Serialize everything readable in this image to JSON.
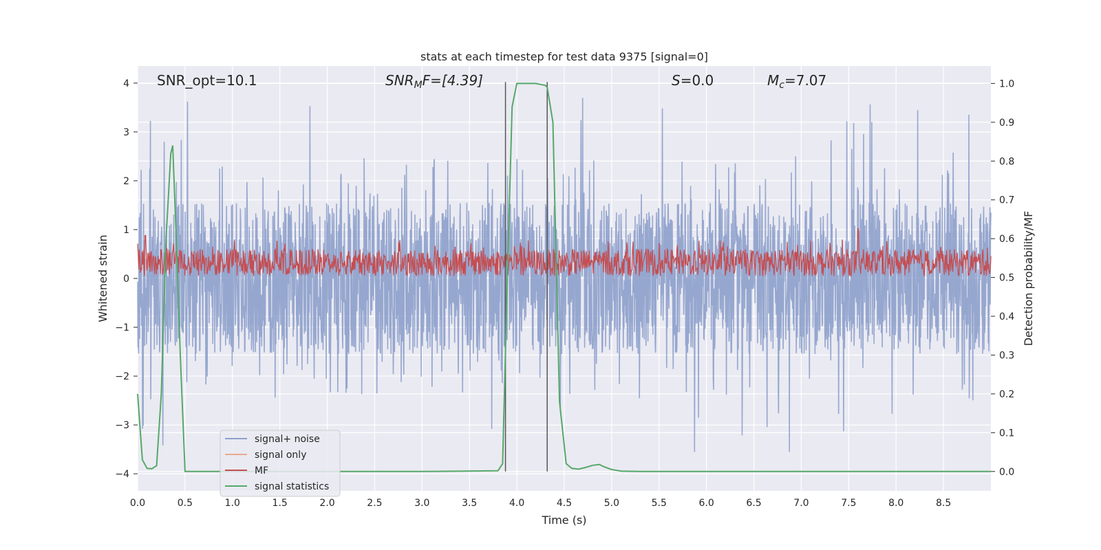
{
  "chart_data": {
    "type": "line",
    "title": "stats at each timestep for test data 9375 [signal=0]",
    "xlabel": "Time (s)",
    "ylabel_left": "Whitened strain",
    "ylabel_right": "Detection probability/MF",
    "xlim": [
      0,
      9.0
    ],
    "ylim_left": [
      -4.35,
      4.35
    ],
    "ylim_right": [
      -0.05,
      1.045
    ],
    "x_ticks": [
      0.0,
      0.5,
      1.0,
      1.5,
      2.0,
      2.5,
      3.0,
      3.5,
      4.0,
      4.5,
      5.0,
      5.5,
      6.0,
      6.5,
      7.0,
      7.5,
      8.0,
      8.5
    ],
    "x_tick_labels": [
      "0.0",
      "0.5",
      "1.0",
      "1.5",
      "2.0",
      "2.5",
      "3.0",
      "3.5",
      "4.0",
      "4.5",
      "5.0",
      "5.5",
      "6.0",
      "6.5",
      "7.0",
      "7.5",
      "8.0",
      "8.5"
    ],
    "y_left_ticks": [
      -4,
      -3,
      -2,
      -1,
      0,
      1,
      2,
      3,
      4
    ],
    "y_left_tick_labels": [
      "−4",
      "−3",
      "−2",
      "−1",
      "0",
      "1",
      "2",
      "3",
      "4"
    ],
    "y_right_ticks": [
      0.0,
      0.1,
      0.2,
      0.3,
      0.4,
      0.5,
      0.6,
      0.7,
      0.8,
      0.9,
      1.0
    ],
    "y_right_tick_labels": [
      "0.0",
      "0.1",
      "0.2",
      "0.3",
      "0.4",
      "0.5",
      "0.6",
      "0.7",
      "0.8",
      "0.9",
      "1.0"
    ],
    "annotations": {
      "snr_opt": "SNR_opt=10.1",
      "snr_mf_sym": "SNR",
      "snr_mf_sub": "M",
      "snr_mf_rest": "F=[4.39]",
      "s_sym": "S",
      "s_rest": "=0.0",
      "mc_sym": "M",
      "mc_sub": "c",
      "mc_rest": "=7.07"
    },
    "legend": {
      "position": "lower-left",
      "entries": [
        "signal+ noise",
        "signal only",
        "MF",
        "signal statistics"
      ]
    },
    "colors": {
      "noise": "#8da0cb",
      "signal": "#e8a98d",
      "mf": "#c44e52",
      "stat": "#55a868",
      "vline": "#555555",
      "bg": "#eaeaf2",
      "grid": "#ffffff"
    },
    "vlines": [
      3.88,
      4.32
    ],
    "series": [
      {
        "name": "signal+ noise",
        "axis": "left",
        "description": "whitened strain, approx. amplitude +/-2.5 with spikes to ~3.9",
        "noise_min_typical": -1.6,
        "noise_max_typical": 1.6,
        "peak_max": 3.95,
        "peak_min": -3.55
      },
      {
        "name": "MF",
        "axis": "left",
        "description": "matched-filter output, approx. 0.05 to 0.7 with peak 1.02",
        "min": 0.02,
        "max": 1.02
      },
      {
        "name": "signal statistics",
        "axis": "right",
        "x": [
          0.0,
          0.05,
          0.1,
          0.15,
          0.2,
          0.25,
          0.3,
          0.35,
          0.37,
          0.4,
          0.45,
          0.5,
          0.55,
          1.0,
          2.0,
          3.0,
          3.8,
          3.85,
          3.9,
          3.95,
          4.0,
          4.1,
          4.2,
          4.3,
          4.32,
          4.38,
          4.45,
          4.52,
          4.58,
          4.65,
          4.72,
          4.8,
          4.87,
          4.92,
          5.0,
          5.1,
          5.3,
          6.0,
          7.0,
          8.0,
          9.0
        ],
        "values": [
          0.2,
          0.03,
          0.008,
          0.007,
          0.015,
          0.2,
          0.6,
          0.82,
          0.84,
          0.65,
          0.3,
          0.0,
          0.0,
          0.0,
          0.0,
          0.0,
          0.002,
          0.02,
          0.5,
          0.94,
          1.0,
          1.0,
          1.0,
          0.995,
          0.99,
          0.9,
          0.18,
          0.02,
          0.008,
          0.006,
          0.01,
          0.016,
          0.018,
          0.012,
          0.005,
          0.001,
          0.0,
          0.0,
          0.0,
          0.0,
          0.0
        ]
      }
    ]
  }
}
